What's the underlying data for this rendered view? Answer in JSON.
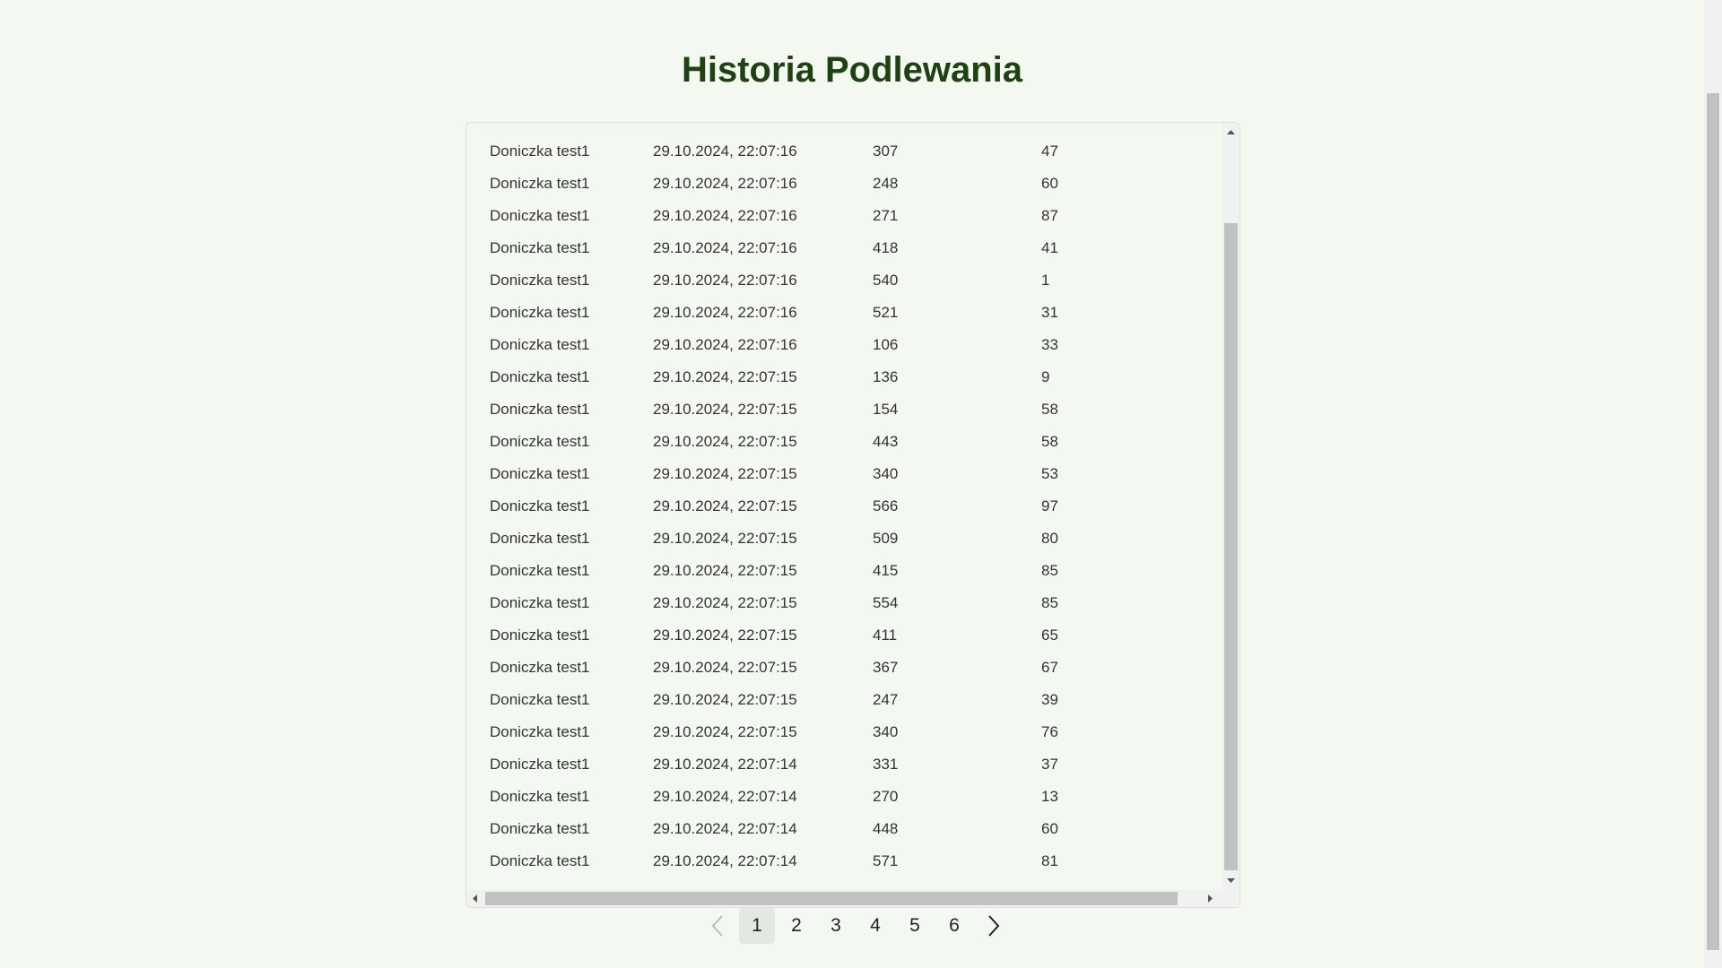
{
  "header": {
    "title": "Historia Podlewania"
  },
  "table": {
    "rows": [
      [
        "Doniczka test1",
        "29.10.2024, 22:07:16",
        307,
        47
      ],
      [
        "Doniczka test1",
        "29.10.2024, 22:07:16",
        248,
        60
      ],
      [
        "Doniczka test1",
        "29.10.2024, 22:07:16",
        271,
        87
      ],
      [
        "Doniczka test1",
        "29.10.2024, 22:07:16",
        418,
        41
      ],
      [
        "Doniczka test1",
        "29.10.2024, 22:07:16",
        540,
        1
      ],
      [
        "Doniczka test1",
        "29.10.2024, 22:07:16",
        521,
        31
      ],
      [
        "Doniczka test1",
        "29.10.2024, 22:07:16",
        106,
        33
      ],
      [
        "Doniczka test1",
        "29.10.2024, 22:07:15",
        136,
        9
      ],
      [
        "Doniczka test1",
        "29.10.2024, 22:07:15",
        154,
        58
      ],
      [
        "Doniczka test1",
        "29.10.2024, 22:07:15",
        443,
        58
      ],
      [
        "Doniczka test1",
        "29.10.2024, 22:07:15",
        340,
        53
      ],
      [
        "Doniczka test1",
        "29.10.2024, 22:07:15",
        566,
        97
      ],
      [
        "Doniczka test1",
        "29.10.2024, 22:07:15",
        509,
        80
      ],
      [
        "Doniczka test1",
        "29.10.2024, 22:07:15",
        415,
        85
      ],
      [
        "Doniczka test1",
        "29.10.2024, 22:07:15",
        554,
        85
      ],
      [
        "Doniczka test1",
        "29.10.2024, 22:07:15",
        411,
        65
      ],
      [
        "Doniczka test1",
        "29.10.2024, 22:07:15",
        367,
        67
      ],
      [
        "Doniczka test1",
        "29.10.2024, 22:07:15",
        247,
        39
      ],
      [
        "Doniczka test1",
        "29.10.2024, 22:07:15",
        340,
        76
      ],
      [
        "Doniczka test1",
        "29.10.2024, 22:07:14",
        331,
        37
      ],
      [
        "Doniczka test1",
        "29.10.2024, 22:07:14",
        270,
        13
      ],
      [
        "Doniczka test1",
        "29.10.2024, 22:07:14",
        448,
        60
      ],
      [
        "Doniczka test1",
        "29.10.2024, 22:07:14",
        571,
        81
      ]
    ]
  },
  "pagination": {
    "pages": [
      1,
      2,
      3,
      4,
      5,
      6
    ],
    "current": 1
  }
}
